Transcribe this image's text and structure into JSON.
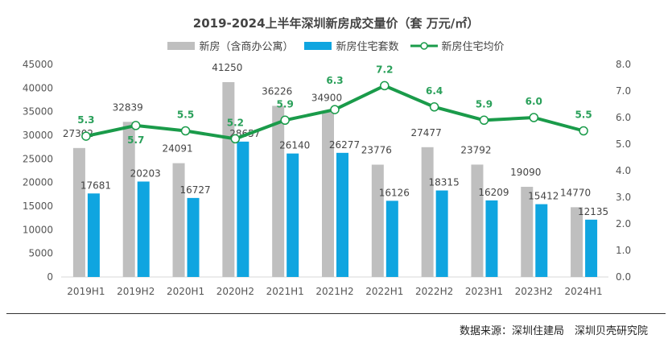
{
  "chart_data": {
    "type": "bar+line",
    "title": "2019-2024上半年深圳新房成交量价（套  万元/㎡）",
    "categories": [
      "2019H1",
      "2019H2",
      "2020H1",
      "2020H2",
      "2021H1",
      "2021H2",
      "2022H1",
      "2022H2",
      "2023H1",
      "2023H2",
      "2024H1"
    ],
    "series": [
      {
        "name": "新房（含商办公寓）",
        "type": "bar",
        "axis": "left",
        "color": "#bfbfbf",
        "values": [
          27302,
          32839,
          24091,
          41250,
          36226,
          34900,
          23776,
          27477,
          23792,
          19090,
          14770
        ]
      },
      {
        "name": "新房住宅套数",
        "type": "bar",
        "axis": "left",
        "color": "#0fa5e0",
        "values": [
          17681,
          20203,
          16727,
          28657,
          26140,
          26277,
          16126,
          18315,
          16209,
          15412,
          12135
        ]
      },
      {
        "name": "新房住宅均价",
        "type": "line",
        "axis": "right",
        "color": "#1a9b4a",
        "values": [
          5.3,
          5.7,
          5.5,
          5.2,
          5.9,
          6.3,
          7.2,
          6.4,
          5.9,
          6.0,
          5.5
        ]
      }
    ],
    "left_axis": {
      "min": 0,
      "max": 45000,
      "ticks": [
        0,
        5000,
        10000,
        15000,
        20000,
        25000,
        30000,
        35000,
        40000,
        45000
      ]
    },
    "right_axis": {
      "min": 0,
      "max": 8,
      "ticks": [
        "0.0",
        "1.0",
        "2.0",
        "3.0",
        "4.0",
        "5.0",
        "6.0",
        "7.0",
        "8.0"
      ]
    },
    "grid": false,
    "legend": "top"
  },
  "source": "数据来源：深圳住建局　深圳贝壳研究院"
}
